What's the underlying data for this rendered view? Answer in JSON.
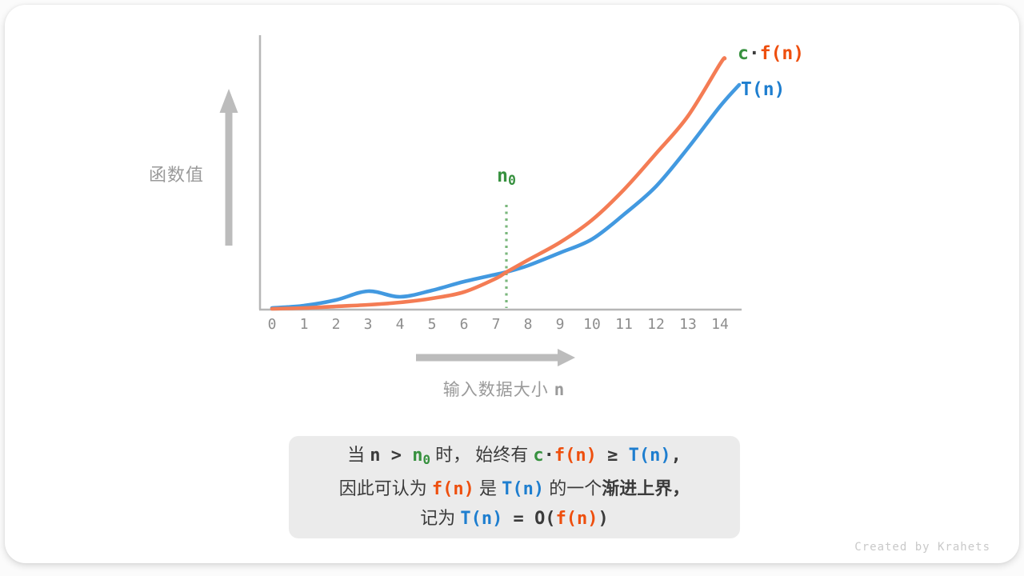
{
  "colors": {
    "green": "#37913f",
    "orange-text": "#ee4f0e",
    "blue-text": "#1e7ecf",
    "orange-curve": "#f47c54",
    "blue-curve": "#4299e0",
    "dark": "#3b3b3b",
    "axis": "#b6b6b6",
    "arrow": "#bcbcbc",
    "tick": "#8d8d8d",
    "axis-label": "#9a9a9a",
    "dotted": "#7ab77c",
    "box-bg": "#ebebeb",
    "footer": "#c9c9c9"
  },
  "chart": {
    "y_axis_label": "函数值",
    "x_axis_label": [
      {
        "t": "输入数据大小 "
      },
      {
        "t": "n",
        "m": true,
        "b": true
      }
    ],
    "x_ticks": [
      "0",
      "1",
      "2",
      "3",
      "4",
      "5",
      "6",
      "7",
      "8",
      "9",
      "10",
      "11",
      "12",
      "13",
      "14"
    ],
    "threshold_label": [
      {
        "t": "n",
        "c": "green",
        "m": true,
        "b": true
      },
      {
        "t": "0",
        "c": "green",
        "m": true,
        "b": true,
        "sub": true
      }
    ],
    "legend": {
      "cfn": [
        {
          "t": "c",
          "c": "green",
          "m": true,
          "b": true
        },
        {
          "t": "·",
          "c": "dark",
          "m": true,
          "b": true
        },
        {
          "t": "f(n)",
          "c": "orange",
          "m": true,
          "b": true
        }
      ],
      "tn": [
        {
          "t": "T(n)",
          "c": "blue",
          "m": true,
          "b": true
        }
      ]
    }
  },
  "chart_data": {
    "type": "line",
    "title": "",
    "xlabel": "输入数据大小 n",
    "ylabel": "函数值",
    "xlim": [
      0,
      14
    ],
    "x_ticks": [
      0,
      1,
      2,
      3,
      4,
      5,
      6,
      7,
      8,
      9,
      10,
      11,
      12,
      13,
      14
    ],
    "grid": false,
    "legend_position": "top-right",
    "series": [
      {
        "name": "T(n)",
        "color": "#4299e0",
        "points": [
          [
            0,
            1
          ],
          [
            1,
            4
          ],
          [
            2,
            11
          ],
          [
            3,
            22
          ],
          [
            4,
            15
          ],
          [
            5,
            23
          ],
          [
            6,
            34
          ],
          [
            7,
            43
          ],
          [
            7.33,
            46
          ],
          [
            8,
            54
          ],
          [
            9,
            70
          ],
          [
            10,
            87
          ],
          [
            11,
            118
          ],
          [
            12,
            153
          ],
          [
            13,
            201
          ],
          [
            14,
            253
          ],
          [
            14.6,
            280
          ]
        ]
      },
      {
        "name": "c·f(n)",
        "color": "#f47c54",
        "points": [
          [
            0,
            0
          ],
          [
            1,
            1
          ],
          [
            2,
            3
          ],
          [
            3,
            5
          ],
          [
            4,
            8
          ],
          [
            5,
            13
          ],
          [
            6,
            21
          ],
          [
            7,
            38
          ],
          [
            7.33,
            46
          ],
          [
            8,
            61
          ],
          [
            9,
            83
          ],
          [
            10,
            111
          ],
          [
            11,
            149
          ],
          [
            12,
            194
          ],
          [
            13,
            241
          ],
          [
            14,
            306
          ],
          [
            14.15,
            313
          ]
        ]
      }
    ],
    "annotations": [
      {
        "label": "n0",
        "x": 7.33,
        "style": "green dotted vertical line"
      }
    ],
    "note_units": "y values are relative heights; chart has no numeric y-axis"
  },
  "caption": {
    "lines": [
      [
        {
          "t": "当 ",
          "c": "dark"
        },
        {
          "t": "n",
          "c": "dark",
          "m": true,
          "b": true
        },
        {
          "t": " > ",
          "c": "dark",
          "m": true,
          "b": true
        },
        {
          "t": "n",
          "c": "green",
          "m": true,
          "b": true
        },
        {
          "t": "0",
          "c": "green",
          "m": true,
          "b": true,
          "sub": true
        },
        {
          "t": " 时， 始终有 ",
          "c": "dark"
        },
        {
          "t": "c",
          "c": "green",
          "m": true,
          "b": true
        },
        {
          "t": "·",
          "c": "dark",
          "m": true,
          "b": true
        },
        {
          "t": "f(n)",
          "c": "orange",
          "m": true,
          "b": true
        },
        {
          "t": " ≥ ",
          "c": "dark",
          "m": true,
          "b": true
        },
        {
          "t": "T(n)",
          "c": "blue",
          "m": true,
          "b": true
        },
        {
          "t": ",",
          "c": "dark",
          "m": true,
          "b": true
        }
      ],
      [
        {
          "t": "因此可认为 ",
          "c": "dark"
        },
        {
          "t": "f(n)",
          "c": "orange",
          "m": true,
          "b": true
        },
        {
          "t": " 是 ",
          "c": "dark"
        },
        {
          "t": "T(n)",
          "c": "blue",
          "m": true,
          "b": true
        },
        {
          "t": " 的一个",
          "c": "dark"
        },
        {
          "t": "渐进上界，",
          "c": "dark",
          "b": true
        }
      ],
      [
        {
          "t": "记为 ",
          "c": "dark"
        },
        {
          "t": "T(n)",
          "c": "blue",
          "m": true,
          "b": true
        },
        {
          "t": " = ",
          "c": "dark",
          "m": true,
          "b": true
        },
        {
          "t": "O(",
          "c": "dark",
          "m": true,
          "b": true
        },
        {
          "t": "f(n)",
          "c": "orange",
          "m": true,
          "b": true
        },
        {
          "t": ")",
          "c": "dark",
          "m": true,
          "b": true
        }
      ]
    ]
  },
  "footer": {
    "credit": "Created by Krahets"
  }
}
